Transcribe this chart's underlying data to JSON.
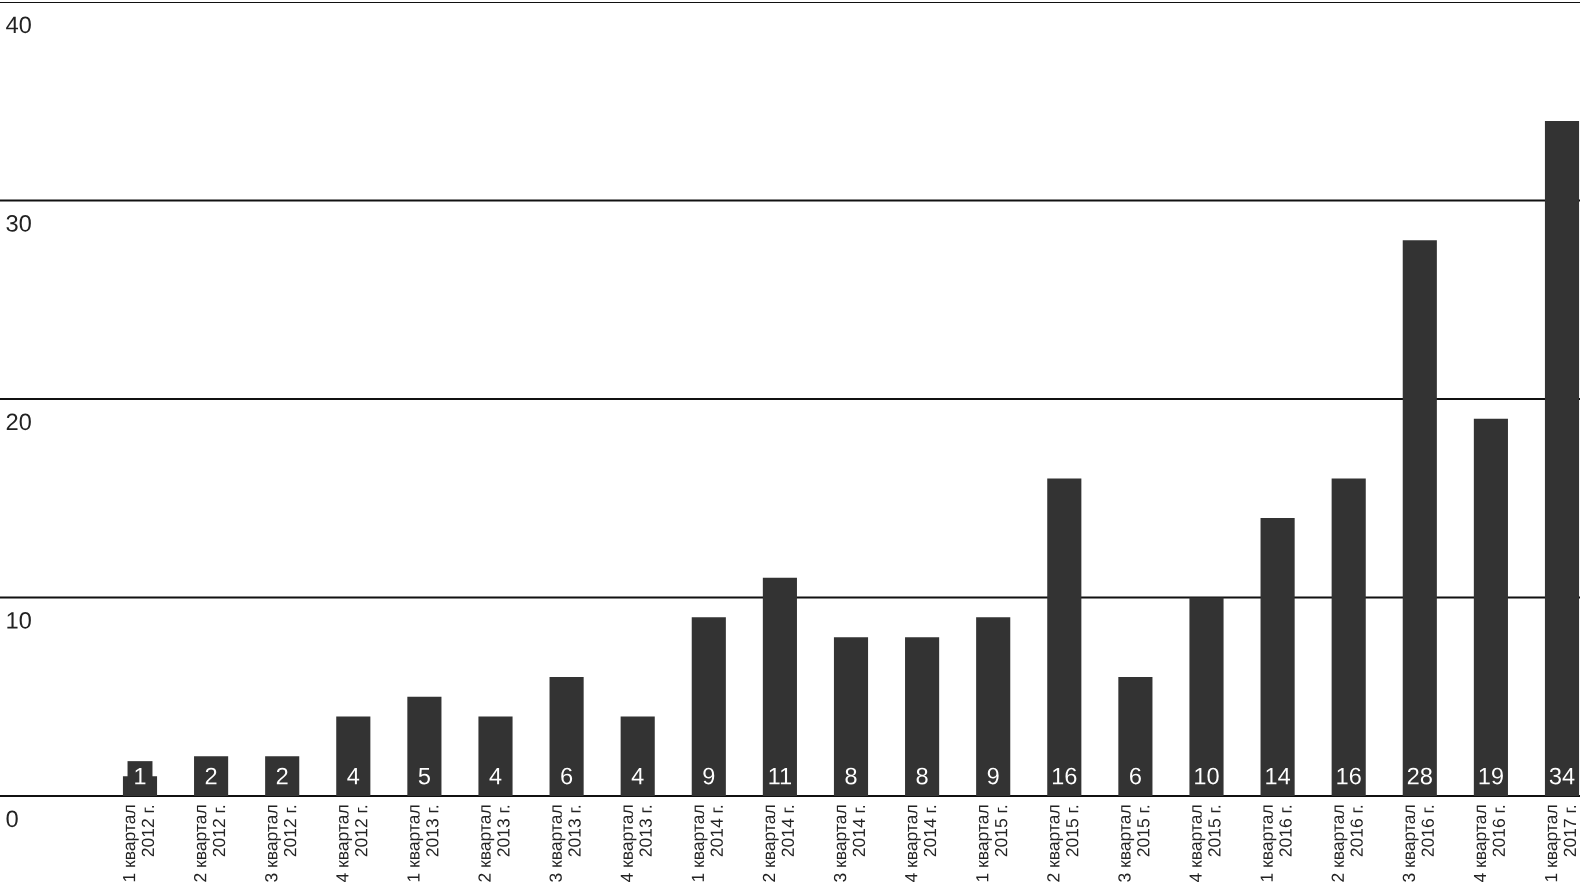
{
  "chart_data": {
    "type": "bar",
    "categories": [
      "1 квартал\n2012 г.",
      "2 квартал\n2012 г.",
      "3 квартал\n2012 г.",
      "4 квартал\n2012 г.",
      "1 квартал\n2013 г.",
      "2 квартал\n2013 г.",
      "3 квартал\n2013 г.",
      "4 квартал\n2013 г.",
      "1 квартал\n2014 г.",
      "2 квартал\n2014 г.",
      "3 квартал\n2014 г.",
      "4 квартал\n2014 г.",
      "1 квартал\n2015 г.",
      "2 квартал\n2015 г.",
      "3 квартал\n2015 г.",
      "4 квартал\n2015 г.",
      "1 квартал\n2016 г.",
      "2 квартал\n2016 г.",
      "3 квартал\n2016 г.",
      "4 квартал\n2016 г.",
      "1 квартал\n2017 г."
    ],
    "values": [
      1,
      2,
      2,
      4,
      5,
      4,
      6,
      4,
      9,
      11,
      8,
      8,
      9,
      16,
      6,
      10,
      14,
      16,
      28,
      19,
      34
    ],
    "color": "#333333",
    "ylim": [
      0,
      40
    ],
    "yticks": [
      0,
      10,
      20,
      30,
      40
    ],
    "grid": "y",
    "data_labels": true
  }
}
